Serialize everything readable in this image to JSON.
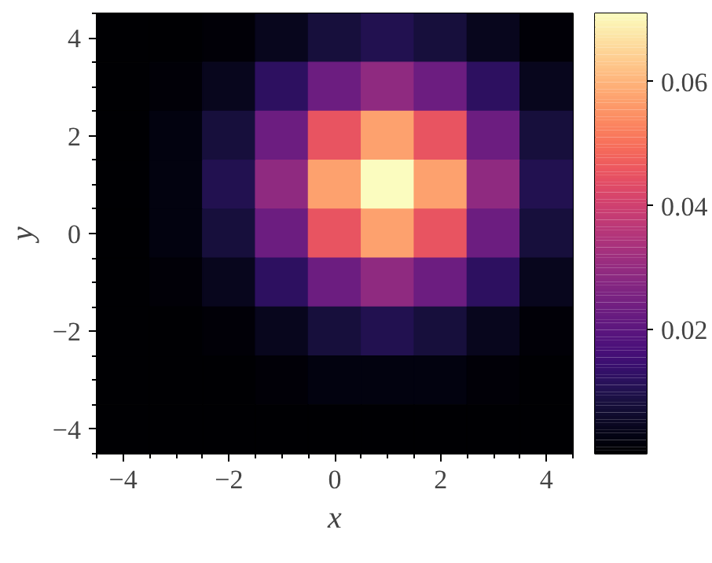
{
  "chart_data": {
    "type": "heatmap",
    "xlabel": "x",
    "ylabel": "y",
    "categories": [
      "−4",
      null,
      "−2",
      null,
      "0",
      null,
      "2",
      null,
      "4"
    ],
    "y_categories": [
      "4",
      null,
      "2",
      null,
      "0",
      null,
      "−2",
      null,
      "−4"
    ],
    "clim": [
      0,
      0.071
    ],
    "cticks": [
      0.02,
      0.04,
      0.06
    ],
    "cells": [
      [
        0.0,
        0.0,
        0.001,
        0.004,
        0.008,
        0.01,
        0.008,
        0.004,
        0.001
      ],
      [
        0.0,
        0.001,
        0.004,
        0.012,
        0.023,
        0.029,
        0.023,
        0.012,
        0.004
      ],
      [
        0.0,
        0.002,
        0.008,
        0.023,
        0.045,
        0.057,
        0.045,
        0.023,
        0.008
      ],
      [
        0.0,
        0.002,
        0.01,
        0.029,
        0.057,
        0.071,
        0.057,
        0.029,
        0.01
      ],
      [
        0.0,
        0.002,
        0.008,
        0.023,
        0.045,
        0.057,
        0.045,
        0.023,
        0.008
      ],
      [
        0.0,
        0.001,
        0.004,
        0.012,
        0.023,
        0.029,
        0.023,
        0.012,
        0.004
      ],
      [
        0.0,
        0.0,
        0.001,
        0.004,
        0.008,
        0.01,
        0.008,
        0.004,
        0.001
      ],
      [
        0.0,
        0.0,
        0.0,
        0.001,
        0.002,
        0.002,
        0.002,
        0.001,
        0.0
      ],
      [
        0.0,
        0.0,
        0.0,
        0.0,
        0.0,
        0.0,
        0.0,
        0.0,
        0.0
      ]
    ]
  }
}
